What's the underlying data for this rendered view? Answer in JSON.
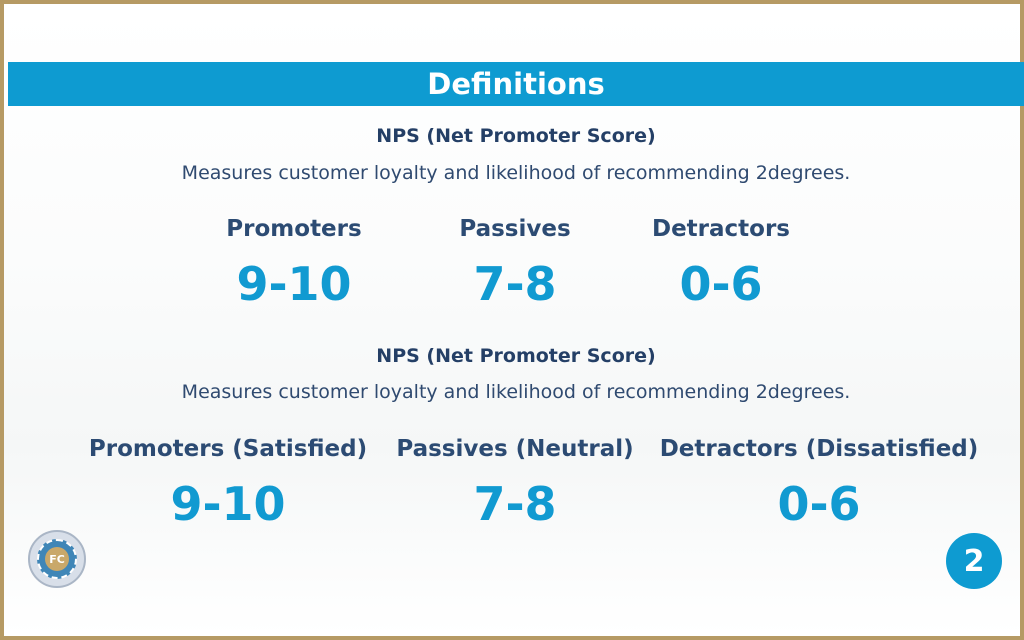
{
  "banner": {
    "title": "Definitions"
  },
  "section1": {
    "heading": "NPS (Net Promoter Score)",
    "description": "Measures customer loyalty and likelihood of recommending 2degrees.",
    "categories": [
      {
        "label": "Promoters",
        "score": "9-10"
      },
      {
        "label": "Passives",
        "score": "7-8"
      },
      {
        "label": "Detractors",
        "score": "0-6"
      }
    ]
  },
  "section2": {
    "heading": "NPS (Net Promoter Score)",
    "description": "Measures customer loyalty and likelihood of recommending 2degrees.",
    "categories": [
      {
        "label": "Promoters (Satisfied)",
        "score": "9-10"
      },
      {
        "label": "Passives (Neutral)",
        "score": "7-8"
      },
      {
        "label": "Detractors (Dissatisfied)",
        "score": "0-6"
      }
    ]
  },
  "colors": {
    "accent": "#0e9bd1",
    "heading": "#243f66",
    "score": "#119ad1",
    "frame": "#b69a64"
  },
  "icons": {
    "badge": "certification-seal-icon",
    "logo": "2degrees-logo-icon"
  }
}
